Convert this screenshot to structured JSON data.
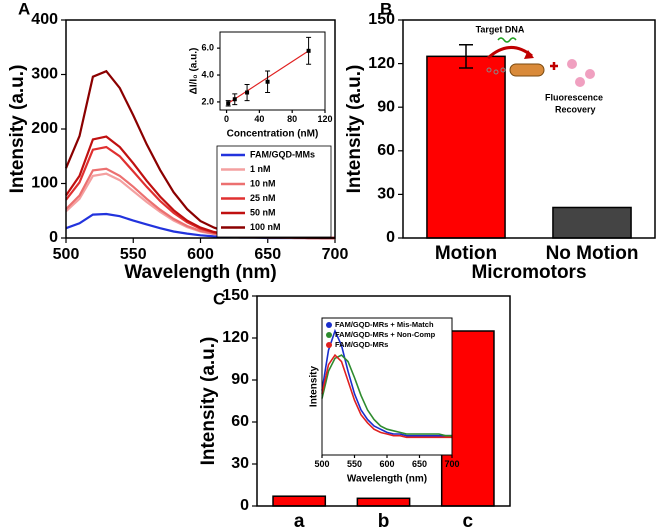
{
  "chart_data": [
    {
      "type": "line",
      "panel": "A",
      "xlabel": "Wavelength (nm)",
      "ylabel": "Intensity (a.u.)",
      "x": [
        500,
        510,
        520,
        530,
        540,
        550,
        560,
        570,
        580,
        590,
        600,
        610,
        620,
        630,
        640,
        650,
        660,
        670,
        680,
        690,
        700
      ],
      "xlim": [
        500,
        700
      ],
      "xticks": [
        500,
        550,
        600,
        650,
        700
      ],
      "ylim": [
        0,
        400
      ],
      "yticks": [
        0,
        100,
        200,
        300,
        400
      ],
      "legend": "lower right",
      "series": [
        {
          "name": "FAM/GQD-MMs",
          "color": "#2233dd",
          "values": [
            18,
            27,
            43,
            44,
            40,
            32,
            25,
            18,
            12,
            8,
            5,
            3,
            2,
            1,
            1,
            0,
            0,
            0,
            0,
            0,
            0
          ]
        },
        {
          "name": "1 nM",
          "color": "#f4a0a0",
          "values": [
            49,
            72,
            114,
            118,
            106,
            86,
            66,
            48,
            32,
            20,
            12,
            7,
            4,
            2,
            1,
            1,
            1,
            0,
            0,
            0,
            0
          ]
        },
        {
          "name": "10 nM",
          "color": "#ec7070",
          "values": [
            53,
            78,
            124,
            127,
            114,
            94,
            72,
            52,
            35,
            22,
            13,
            8,
            5,
            3,
            2,
            1,
            1,
            0,
            0,
            0,
            0
          ]
        },
        {
          "name": "25 nM",
          "color": "#e03030",
          "values": [
            70,
            102,
            162,
            167,
            150,
            122,
            94,
            68,
            46,
            29,
            17,
            10,
            6,
            3,
            2,
            1,
            1,
            1,
            0,
            0,
            0
          ]
        },
        {
          "name": "50 nM",
          "color": "#c01010",
          "values": [
            78,
            114,
            181,
            186,
            167,
            137,
            105,
            76,
            51,
            32,
            19,
            11,
            7,
            4,
            2,
            2,
            1,
            1,
            0,
            0,
            0
          ]
        },
        {
          "name": "100 nM",
          "color": "#8b0000",
          "values": [
            128,
            187,
            296,
            306,
            275,
            225,
            172,
            125,
            84,
            53,
            31,
            19,
            11,
            6,
            4,
            2,
            2,
            1,
            1,
            0,
            0
          ]
        }
      ]
    },
    {
      "type": "scatter",
      "xlabel": "Concentration (nM)",
      "ylabel": "ΔI/I₀ (a.u.)",
      "x": [
        2,
        10,
        25,
        50,
        100
      ],
      "values": [
        1.9,
        2.2,
        2.7,
        3.5,
        5.8
      ],
      "errors": [
        0.2,
        0.4,
        0.6,
        0.8,
        1.0
      ],
      "color": "#000000",
      "fit_line": {
        "x": [
          2,
          100
        ],
        "y": [
          1.9,
          5.8
        ],
        "color": "#e02020"
      },
      "xlim": [
        -8,
        120
      ],
      "xticks": [
        0,
        40,
        80,
        120
      ],
      "ylim": [
        1.4,
        7.2
      ],
      "yticks": [
        {
          "value": 2,
          "label": "2.0"
        },
        {
          "value": 4,
          "label": "4.0"
        },
        {
          "value": 6,
          "label": "6.0"
        }
      ]
    },
    {
      "type": "bar",
      "panel": "B",
      "xlabel": "Micromotors",
      "ylabel": "Intensity (a.u.)",
      "categories": [
        "Motion",
        "No Motion"
      ],
      "values": [
        125,
        21
      ],
      "errors": [
        8,
        null
      ],
      "colors": [
        "#ff0000",
        "#444444"
      ],
      "ylim": [
        0,
        150
      ],
      "yticks": [
        0,
        30,
        60,
        90,
        120,
        150
      ],
      "annotations": [
        "Target DNA",
        "Fluorescence",
        "Recovery"
      ]
    },
    {
      "type": "bar",
      "panel": "C",
      "ylabel": "Intensity (a.u.)",
      "categories": [
        "a",
        "b",
        "c"
      ],
      "values": [
        7,
        5.5,
        125
      ],
      "colors": [
        "#ff0000",
        "#ff0000",
        "#ff0000"
      ],
      "ylim": [
        0,
        150
      ],
      "yticks": [
        0,
        30,
        60,
        90,
        120,
        150
      ]
    },
    {
      "type": "line",
      "xlabel": "Wavelength (nm)",
      "ylabel": "Intensity",
      "x": [
        500,
        510,
        520,
        530,
        540,
        550,
        560,
        570,
        580,
        590,
        600,
        610,
        620,
        630,
        640,
        650,
        660,
        670,
        680,
        690,
        700
      ],
      "xlim": [
        500,
        700
      ],
      "xticks": [
        500,
        550,
        600,
        650,
        700
      ],
      "ylim": [
        60,
        145
      ],
      "legend": "upper left",
      "series": [
        {
          "name": "FAM/GQD-MRs + Mis-Match",
          "color": "#1a2ecc",
          "values": [
            100,
            125,
            137,
            128,
            112,
            98,
            88,
            82,
            78,
            76,
            74,
            73,
            73,
            72,
            72,
            72,
            72,
            72,
            72,
            72,
            72
          ]
        },
        {
          "name": "FAM/GQD-MRs + Non-Comp",
          "color": "#2e8b2e",
          "values": [
            95,
            112,
            120,
            122,
            118,
            108,
            97,
            88,
            82,
            78,
            76,
            75,
            74,
            73,
            73,
            73,
            73,
            73,
            73,
            72,
            72
          ]
        },
        {
          "name": "FAM/GQD-MRs",
          "color": "#e02020",
          "values": [
            98,
            116,
            122,
            118,
            106,
            94,
            85,
            80,
            76,
            74,
            73,
            72,
            72,
            71,
            71,
            71,
            71,
            71,
            71,
            71,
            71
          ]
        }
      ]
    }
  ]
}
